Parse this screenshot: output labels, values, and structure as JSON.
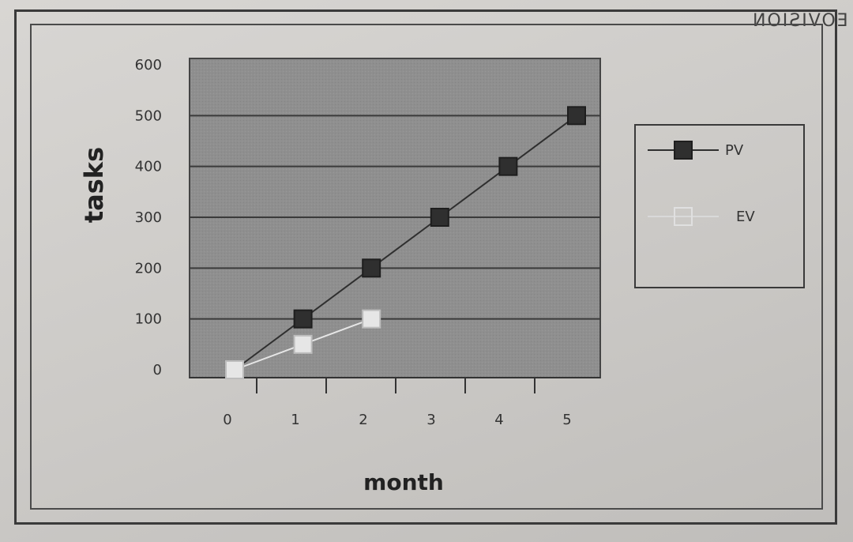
{
  "watermark": "EOVISION",
  "chart_data": {
    "type": "line",
    "title": "",
    "xlabel": "month",
    "ylabel": "tasks",
    "x": [
      0,
      1,
      2,
      3,
      4,
      5
    ],
    "xlim": [
      0,
      5
    ],
    "ylim": [
      0,
      600
    ],
    "yticks": [
      0,
      100,
      200,
      300,
      400,
      500,
      600
    ],
    "grid": true,
    "legend_position": "right",
    "plot_background": "#8f8f8f",
    "series": [
      {
        "name": "PV",
        "x": [
          0,
          1,
          2,
          3,
          4,
          5
        ],
        "values": [
          0,
          100,
          200,
          300,
          400,
          500
        ],
        "color": "#2f2f2f",
        "marker": "filled-square"
      },
      {
        "name": "EV",
        "x": [
          0,
          1,
          2
        ],
        "values": [
          0,
          50,
          100
        ],
        "color": "#e6e6e6",
        "marker": "hollow-square"
      }
    ]
  }
}
